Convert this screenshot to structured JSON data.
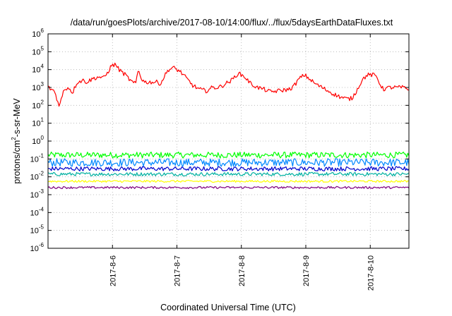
{
  "chart_data": {
    "type": "line",
    "title": "/data/run/goesPlots/archive/2017-08-10/14:00/flux/../flux/5daysEarthDataFluxes.txt",
    "xlabel": "Coordinated Universal Time (UTC)",
    "ylabel_main": "protons/cm",
    "ylabel_exp": "2",
    "ylabel_rest": "-s-sr-MeV",
    "yscale": "log",
    "ylim_exp": [
      -6,
      6
    ],
    "y_ticks": [
      {
        "base": "10",
        "exp": "-6"
      },
      {
        "base": "10",
        "exp": "-5"
      },
      {
        "base": "10",
        "exp": "-4"
      },
      {
        "base": "10",
        "exp": "-3"
      },
      {
        "base": "10",
        "exp": "-2"
      },
      {
        "base": "10",
        "exp": "-1"
      },
      {
        "base": "10",
        "exp": "0"
      },
      {
        "base": "10",
        "exp": "1"
      },
      {
        "base": "10",
        "exp": "2"
      },
      {
        "base": "10",
        "exp": "3"
      },
      {
        "base": "10",
        "exp": "4"
      },
      {
        "base": "10",
        "exp": "5"
      },
      {
        "base": "10",
        "exp": "6"
      }
    ],
    "xlim_days": [
      5.0,
      10.6
    ],
    "x_ticks": [
      {
        "day": 6,
        "label": "2017-8-6"
      },
      {
        "day": 7,
        "label": "2017-8-7"
      },
      {
        "day": 8,
        "label": "2017-8-8"
      },
      {
        "day": 9,
        "label": "2017-8-9"
      },
      {
        "day": 10,
        "label": "2017-8-10"
      }
    ],
    "grid": true,
    "series": [
      {
        "color": "#ff0000",
        "noise_exp": 0.12,
        "points": [
          [
            5.0,
            3.0
          ],
          [
            5.1,
            2.8
          ],
          [
            5.15,
            2.2
          ],
          [
            5.18,
            2.0
          ],
          [
            5.25,
            2.9
          ],
          [
            5.32,
            3.0
          ],
          [
            5.38,
            2.7
          ],
          [
            5.45,
            3.3
          ],
          [
            5.55,
            3.4
          ],
          [
            5.6,
            3.3
          ],
          [
            5.7,
            3.5
          ],
          [
            5.8,
            3.6
          ],
          [
            5.85,
            3.5
          ],
          [
            5.92,
            3.8
          ],
          [
            5.98,
            4.2
          ],
          [
            6.05,
            4.3
          ],
          [
            6.1,
            4.0
          ],
          [
            6.2,
            3.7
          ],
          [
            6.3,
            3.3
          ],
          [
            6.36,
            3.2
          ],
          [
            6.4,
            4.0
          ],
          [
            6.45,
            3.5
          ],
          [
            6.5,
            3.3
          ],
          [
            6.6,
            3.3
          ],
          [
            6.7,
            3.3
          ],
          [
            6.75,
            3.2
          ],
          [
            6.8,
            3.6
          ],
          [
            6.87,
            4.0
          ],
          [
            6.95,
            4.1
          ],
          [
            7.05,
            3.9
          ],
          [
            7.15,
            3.5
          ],
          [
            7.25,
            3.1
          ],
          [
            7.35,
            2.9
          ],
          [
            7.45,
            2.8
          ],
          [
            7.55,
            3.0
          ],
          [
            7.65,
            3.0
          ],
          [
            7.75,
            3.2
          ],
          [
            7.85,
            3.4
          ],
          [
            7.95,
            3.8
          ],
          [
            8.05,
            3.6
          ],
          [
            8.15,
            3.2
          ],
          [
            8.25,
            3.0
          ],
          [
            8.35,
            2.9
          ],
          [
            8.45,
            2.75
          ],
          [
            8.55,
            2.8
          ],
          [
            8.65,
            2.85
          ],
          [
            8.75,
            2.9
          ],
          [
            8.82,
            3.1
          ],
          [
            8.9,
            3.5
          ],
          [
            8.98,
            3.7
          ],
          [
            9.05,
            3.5
          ],
          [
            9.15,
            3.2
          ],
          [
            9.25,
            3.0
          ],
          [
            9.35,
            2.8
          ],
          [
            9.45,
            2.6
          ],
          [
            9.55,
            2.45
          ],
          [
            9.65,
            2.35
          ],
          [
            9.72,
            2.4
          ],
          [
            9.8,
            2.9
          ],
          [
            9.87,
            3.4
          ],
          [
            9.95,
            3.7
          ],
          [
            10.05,
            3.7
          ],
          [
            10.1,
            3.6
          ],
          [
            10.15,
            3.2
          ],
          [
            10.2,
            2.9
          ],
          [
            10.3,
            3.0
          ],
          [
            10.4,
            3.0
          ],
          [
            10.5,
            3.0
          ],
          [
            10.6,
            2.9
          ]
        ]
      },
      {
        "color": "#00ff00",
        "base_exp": -0.78,
        "noise_exp": 0.17
      },
      {
        "color": "#0088ff",
        "base_exp": -1.2,
        "noise_exp": 0.22
      },
      {
        "color": "#0000cc",
        "base_exp": -1.55,
        "noise_exp": 0.12
      },
      {
        "color": "#00b0a0",
        "base_exp": -1.85,
        "noise_exp": 0.1
      },
      {
        "color": "#ffff00",
        "base_exp": -2.25,
        "noise_exp": 0.06
      },
      {
        "color": "#800080",
        "base_exp": -2.6,
        "noise_exp": 0.06
      }
    ]
  }
}
